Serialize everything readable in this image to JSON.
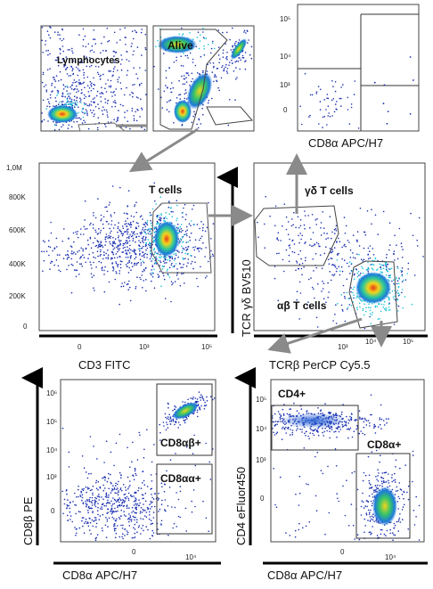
{
  "panel_top_left": {
    "gate": "Lymphocytes"
  },
  "panel_top_mid": {
    "gate": "Alive"
  },
  "panel_top_right": {
    "y_ticks": [
      "10⁵",
      "10⁴",
      "10³",
      "0"
    ],
    "y_ticks_raw": [
      "10^5",
      "10^4",
      "10^3",
      "0"
    ],
    "x_title": "CD8α APC/H7"
  },
  "panel_mid_left": {
    "gate": "T cells",
    "y_ticks": [
      "1,0M",
      "800K",
      "600K",
      "400K",
      "200K",
      "0"
    ],
    "x_ticks": [
      "0",
      "10³",
      "10⁵"
    ],
    "x_title": "CD3 FITC"
  },
  "panel_mid_right": {
    "gate_gd": "γδ T cells",
    "gate_ab": "αβ T cells",
    "y_title": "TCR γδ BV510",
    "x_ticks": [
      "0",
      "10³",
      "10⁴",
      "10⁵"
    ],
    "x_title": "TCRβ PerCP Cy5.5"
  },
  "panel_bot_left": {
    "gate_ab": "CD8αβ+",
    "gate_aa": "CD8αα+",
    "y_ticks": [
      "10⁶",
      "10⁵",
      "10⁴",
      "10³",
      "0"
    ],
    "x_ticks": [
      "0",
      "10⁴"
    ],
    "y_title": "CD8β PE",
    "x_title": "CD8α APC/H7"
  },
  "panel_bot_right": {
    "gate_cd4": "CD4+",
    "gate_cd8": "CD8α+",
    "y_ticks": [
      "10⁵",
      "10⁴",
      "10³",
      "0"
    ],
    "x_ticks": [
      "0",
      "10⁴"
    ],
    "y_title": "CD4 eFluor450",
    "x_title": "CD8α APC/H7"
  },
  "colors": {
    "accent_arrow": "#8a8a8a",
    "gate_line": "#555555",
    "dot_low": "#1a2fb0",
    "dot_mid": "#19c2d6",
    "dot_high": "#e6e619",
    "dot_peak": "#e83a1c"
  }
}
